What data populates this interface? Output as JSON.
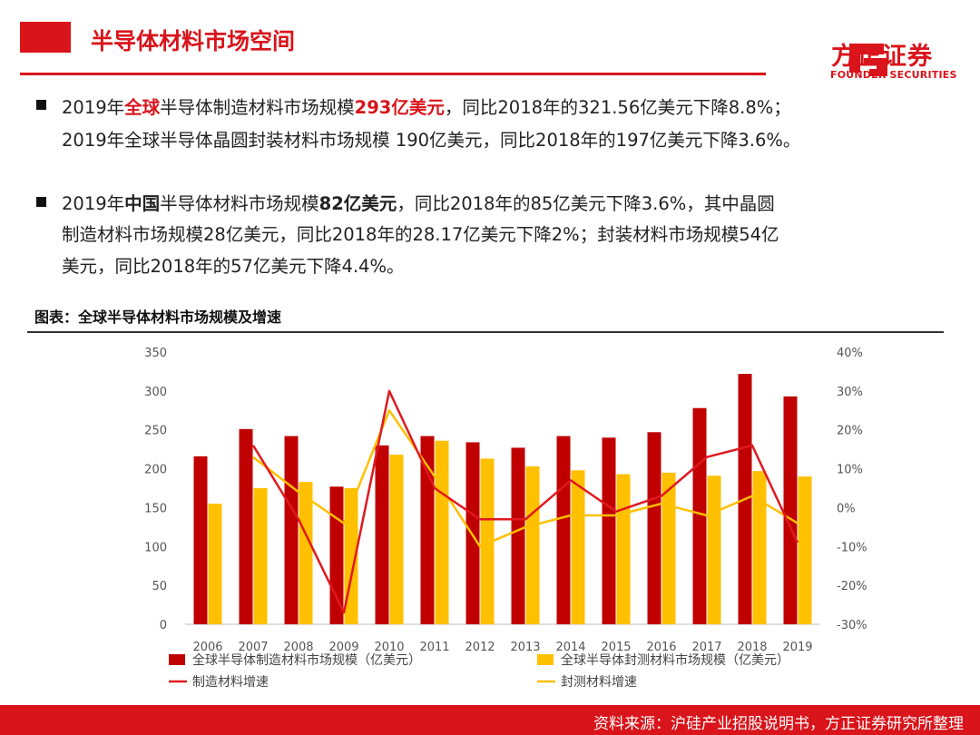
{
  "header": {
    "title": "半导体材料市场空间",
    "logo_cn": "方正证券",
    "logo_en": "FOUNDER SECURITIES"
  },
  "bullets": {
    "b1_l1": {
      "p1": "2019年",
      "p2": "全球",
      "p3": "半导体制造材料市场规模",
      "p4": "293亿美元",
      "p5": "，同比2018年的321.56亿美元下降8.8%；"
    },
    "b1_l2": "2019年全球半导体晶圆封装材料市场规模 190亿美元，同比2018年的197亿美元下降3.6%。",
    "b2_l1": {
      "p1": "2019年",
      "p2": "中国",
      "p3": "半导体材料市场规模",
      "p4": "82亿美元",
      "p5": "，同比2018年的85亿美元下降3.6%，其中晶圆"
    },
    "b2_l2": "制造材料市场规模28亿美元，同比2018年的28.17亿美元下降2%；封装材料市场规模54亿",
    "b2_l3": "美元，同比2018年的57亿美元下降4.4%。"
  },
  "chart_caption": "图表：全球半导体材料市场规模及增速",
  "chart_data": {
    "type": "bar",
    "categories": [
      "2006",
      "2007",
      "2008",
      "2009",
      "2010",
      "2011",
      "2012",
      "2013",
      "2014",
      "2015",
      "2016",
      "2017",
      "2018",
      "2019"
    ],
    "ylim": [
      0,
      350
    ],
    "yticks": [
      0,
      50,
      100,
      150,
      200,
      250,
      300,
      350
    ],
    "y2lim": [
      -30,
      40
    ],
    "y2ticks": [
      "-30%",
      "-20%",
      "-10%",
      "0%",
      "10%",
      "20%",
      "30%",
      "40%"
    ],
    "series": [
      {
        "name": "全球半导体制造材料市场规模（亿美元）",
        "type": "bar",
        "axis": "left",
        "color": "#c00000",
        "values": [
          216,
          251,
          242,
          177,
          230,
          242,
          234,
          227,
          242,
          240,
          247,
          278,
          322,
          293
        ]
      },
      {
        "name": "全球半导体封测材料市场规模（亿美元）",
        "type": "bar",
        "axis": "left",
        "color": "#ffc000",
        "values": [
          155,
          175,
          183,
          175,
          218,
          236,
          213,
          203,
          198,
          193,
          195,
          191,
          197,
          190
        ]
      },
      {
        "name": "制造材料增速",
        "type": "line",
        "axis": "right",
        "color": "#e0191f",
        "values": [
          null,
          16,
          -3,
          -27,
          30,
          5,
          -3,
          -3,
          7,
          -1,
          3,
          13,
          16,
          -9
        ]
      },
      {
        "name": "封测材料增速",
        "type": "line",
        "axis": "right",
        "color": "#ffc000",
        "values": [
          null,
          13,
          4,
          -4,
          25,
          8,
          -10,
          -5,
          -2,
          -2,
          1,
          -2,
          3,
          -4
        ]
      }
    ]
  },
  "footer": "资料来源：沪硅产业招股说明书，方正证券研究所整理"
}
